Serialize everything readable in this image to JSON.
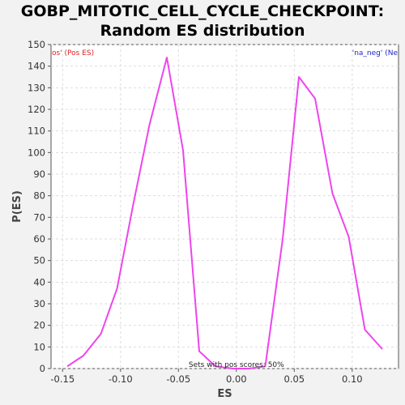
{
  "chart_data": {
    "type": "line",
    "title_line1": "GOBP_MITOTIC_CELL_CYCLE_CHECKPOINT:",
    "title_line2": "Random ES distribution",
    "xlabel": "ES",
    "ylabel": "P(ES)",
    "xlim": [
      -0.16,
      0.14
    ],
    "ylim": [
      0,
      150
    ],
    "xticks": [
      "-0.15",
      "-0.10",
      "-0.05",
      "0.00",
      "0.05",
      "0.10"
    ],
    "xtick_values": [
      -0.15,
      -0.1,
      -0.05,
      0.0,
      0.05,
      0.1
    ],
    "yticks": [
      0,
      10,
      20,
      30,
      40,
      50,
      60,
      70,
      80,
      90,
      100,
      110,
      120,
      130,
      140,
      150
    ],
    "grid": true,
    "legend_left": "os' (Pos ES)",
    "legend_right": "'na_neg' (Ne",
    "annotation": "Sets with pos scores: 50%",
    "series": [
      {
        "color": "#ee44ee",
        "x": [
          -0.146,
          -0.132,
          -0.117,
          -0.103,
          -0.089,
          -0.075,
          -0.06,
          -0.046,
          -0.032,
          -0.018,
          -0.003,
          0.011,
          0.025,
          0.04,
          0.054,
          0.068,
          0.083,
          0.097,
          0.111,
          0.126
        ],
        "y": [
          1,
          6,
          16,
          37,
          76,
          113,
          144,
          101,
          8,
          1,
          0,
          0,
          1,
          60,
          135,
          125,
          81,
          61,
          18,
          9
        ]
      }
    ],
    "legend_colors": {
      "pos": "#dd2222",
      "neg": "#2222cc"
    }
  }
}
